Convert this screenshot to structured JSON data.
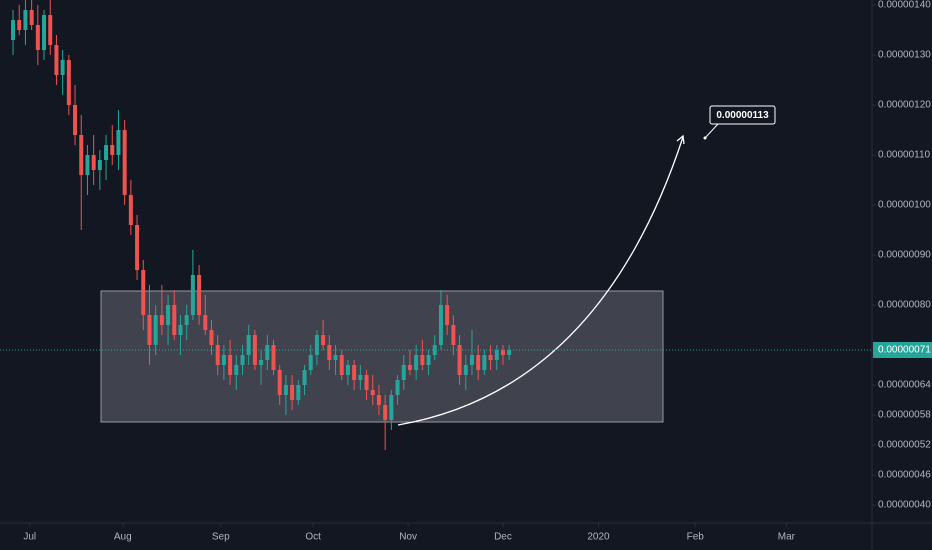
{
  "chart_data": {
    "type": "candlestick",
    "up_color": "#26a69a",
    "down_color": "#ef5350",
    "open": [
      1.33e-06,
      1.37e-06,
      1.35e-06,
      1.39e-06,
      1.36e-06,
      1.31e-06,
      1.38e-06,
      1.32e-06,
      1.26e-06,
      1.29e-06,
      1.2e-06,
      1.14e-06,
      1.06e-06,
      1.1e-06,
      1.07e-06,
      1.09e-06,
      1.12e-06,
      1.1e-06,
      1.15e-06,
      1.02e-06,
      9.6e-07,
      8.7e-07,
      7.8e-07,
      7.2e-07,
      7.8e-07,
      7.6e-07,
      8e-07,
      7.4e-07,
      7.6e-07,
      7.8e-07,
      8.6e-07,
      7.8e-07,
      7.5e-07,
      7.2e-07,
      6.8e-07,
      7e-07,
      6.6e-07,
      6.8e-07,
      7e-07,
      7.4e-07,
      6.8e-07,
      6.9e-07,
      7.2e-07,
      6.7e-07,
      6.2e-07,
      6.4e-07,
      6.1e-07,
      6.4e-07,
      6.7e-07,
      7e-07,
      7.4e-07,
      7.2e-07,
      6.9e-07,
      7e-07,
      6.6e-07,
      6.8e-07,
      6.5e-07,
      6.6e-07,
      6.3e-07,
      6.2e-07,
      6e-07,
      5.7e-07,
      6.2e-07,
      6.5e-07,
      6.8e-07,
      6.7e-07,
      7e-07,
      6.8e-07,
      7e-07,
      7.2e-07,
      8e-07,
      7.6e-07,
      7.2e-07,
      6.6e-07,
      6.8e-07,
      7e-07,
      6.7e-07,
      7e-07,
      6.9e-07,
      7.1e-07,
      7e-07
    ],
    "high": [
      1.39e-06,
      1.4e-06,
      1.41e-06,
      1.41e-06,
      1.4e-06,
      1.39e-06,
      1.41e-06,
      1.34e-06,
      1.31e-06,
      1.3e-06,
      1.24e-06,
      1.18e-06,
      1.12e-06,
      1.14e-06,
      1.11e-06,
      1.14e-06,
      1.16e-06,
      1.19e-06,
      1.17e-06,
      1.05e-06,
      9.8e-07,
      8.9e-07,
      8.4e-07,
      8e-07,
      8.4e-07,
      8.2e-07,
      8.3e-07,
      7.8e-07,
      8e-07,
      9.1e-07,
      8.8e-07,
      8.2e-07,
      7.7e-07,
      7.4e-07,
      7.2e-07,
      7.3e-07,
      7e-07,
      7.2e-07,
      7.6e-07,
      7.5e-07,
      7.1e-07,
      7.4e-07,
      7.3e-07,
      6.8e-07,
      6.6e-07,
      6.6e-07,
      6.5e-07,
      6.8e-07,
      7.2e-07,
      7.5e-07,
      7.7e-07,
      7.4e-07,
      7.2e-07,
      7.1e-07,
      6.9e-07,
      6.9e-07,
      6.8e-07,
      6.7e-07,
      6.6e-07,
      6.4e-07,
      6.2e-07,
      6.3e-07,
      6.6e-07,
      7e-07,
      7.1e-07,
      7.2e-07,
      7.3e-07,
      7.1e-07,
      7.4e-07,
      8.3e-07,
      8.2e-07,
      7.8e-07,
      7.4e-07,
      7e-07,
      7.5e-07,
      7.2e-07,
      7.1e-07,
      7.2e-07,
      7.2e-07,
      7.2e-07,
      7.2e-07
    ],
    "low": [
      1.3e-06,
      1.34e-06,
      1.32e-06,
      1.35e-06,
      1.28e-06,
      1.29e-06,
      1.3e-06,
      1.24e-06,
      1.22e-06,
      1.18e-06,
      1.12e-06,
      9.5e-07,
      1.02e-06,
      1.04e-06,
      1.03e-06,
      1.05e-06,
      1.08e-06,
      1.07e-06,
      1e-06,
      9.4e-07,
      8.5e-07,
      7.5e-07,
      6.8e-07,
      7e-07,
      7.4e-07,
      7.2e-07,
      7.3e-07,
      7e-07,
      7.3e-07,
      7.7e-07,
      7.6e-07,
      7.4e-07,
      7e-07,
      6.6e-07,
      6.5e-07,
      6.4e-07,
      6.3e-07,
      6.6e-07,
      6.8e-07,
      6.7e-07,
      6.4e-07,
      6.7e-07,
      6.6e-07,
      6e-07,
      5.8e-07,
      5.9e-07,
      6e-07,
      6.2e-07,
      6.6e-07,
      6.8e-07,
      7.1e-07,
      6.7e-07,
      6.6e-07,
      6.5e-07,
      6.4e-07,
      6.3e-07,
      6.3e-07,
      6.1e-07,
      6e-07,
      5.8e-07,
      5.1e-07,
      5.5e-07,
      6e-07,
      6.3e-07,
      6.6e-07,
      6.5e-07,
      6.7e-07,
      6.6e-07,
      6.9e-07,
      7.1e-07,
      7.4e-07,
      7e-07,
      6.4e-07,
      6.3e-07,
      6.6e-07,
      6.5e-07,
      6.6e-07,
      6.7e-07,
      6.7e-07,
      6.8e-07,
      6.9e-07
    ],
    "close": [
      1.37e-06,
      1.35e-06,
      1.39e-06,
      1.36e-06,
      1.31e-06,
      1.38e-06,
      1.32e-06,
      1.26e-06,
      1.29e-06,
      1.2e-06,
      1.14e-06,
      1.06e-06,
      1.1e-06,
      1.07e-06,
      1.09e-06,
      1.12e-06,
      1.1e-06,
      1.15e-06,
      1.02e-06,
      9.6e-07,
      8.7e-07,
      7.8e-07,
      7.2e-07,
      7.8e-07,
      7.6e-07,
      8e-07,
      7.4e-07,
      7.6e-07,
      7.8e-07,
      8.6e-07,
      7.8e-07,
      7.5e-07,
      7.2e-07,
      6.8e-07,
      7e-07,
      6.6e-07,
      6.8e-07,
      7e-07,
      7.4e-07,
      6.8e-07,
      6.9e-07,
      7.2e-07,
      6.7e-07,
      6.2e-07,
      6.4e-07,
      6.1e-07,
      6.4e-07,
      6.7e-07,
      7e-07,
      7.4e-07,
      7.2e-07,
      6.9e-07,
      7e-07,
      6.6e-07,
      6.8e-07,
      6.5e-07,
      6.6e-07,
      6.3e-07,
      6.2e-07,
      6e-07,
      5.7e-07,
      6.2e-07,
      6.5e-07,
      6.8e-07,
      6.7e-07,
      7e-07,
      6.8e-07,
      7e-07,
      7.2e-07,
      8e-07,
      7.6e-07,
      7.2e-07,
      6.6e-07,
      6.8e-07,
      7e-07,
      6.7e-07,
      7e-07,
      6.9e-07,
      7.1e-07,
      7e-07,
      7.1e-07
    ],
    "xlim": [
      -2.1,
      138.5
    ],
    "xticks": [
      {
        "value": 2.7,
        "label": "Jul"
      },
      {
        "value": 17.7,
        "label": "Aug"
      },
      {
        "value": 33.5,
        "label": "Sep"
      },
      {
        "value": 48.4,
        "label": "Oct"
      },
      {
        "value": 63.7,
        "label": "Nov"
      },
      {
        "value": 79,
        "label": "Dec"
      },
      {
        "value": 94.4,
        "label": "2020"
      },
      {
        "value": 110,
        "label": "Feb"
      },
      {
        "value": 124.7,
        "label": "Mar"
      }
    ],
    "ylim": [
      3.64e-07,
      1.41e-06
    ],
    "yticks": [
      {
        "value": 1.4e-06,
        "label": "0.00000140"
      },
      {
        "value": 1.3e-06,
        "label": "0.00000130"
      },
      {
        "value": 1.2e-06,
        "label": "0.00000120"
      },
      {
        "value": 1.1e-06,
        "label": "0.00000110"
      },
      {
        "value": 1e-06,
        "label": "0.00000100"
      },
      {
        "value": 9e-07,
        "label": "0.00000090"
      },
      {
        "value": 8e-07,
        "label": "0.00000080"
      },
      {
        "value": 6.4e-07,
        "label": "0.00000064"
      },
      {
        "value": 5.8e-07,
        "label": "0.00000058"
      },
      {
        "value": 5.2e-07,
        "label": "0.00000052"
      },
      {
        "value": 4.6e-07,
        "label": "0.00000046"
      },
      {
        "value": 4e-07,
        "label": "0.00000040"
      }
    ],
    "last_price": {
      "value": 7.1e-07,
      "label": "0.00000071"
    },
    "annotation": "0.00000113"
  }
}
